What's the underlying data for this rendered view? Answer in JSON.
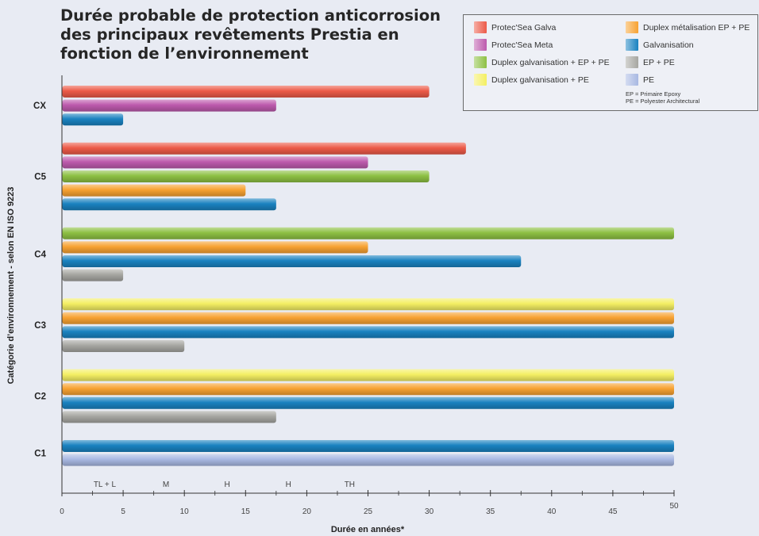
{
  "chart_data": {
    "type": "bar",
    "orientation": "horizontal",
    "title": "Durée probable de protection anticorrosion des principaux revêtements Prestia en fonction de l’environnement",
    "xlabel": "Durée en années*",
    "ylabel": "Catégorie d’environnement - selon EN ISO 9223",
    "xlim": [
      0,
      50
    ],
    "x_ticks": [
      0,
      5,
      10,
      15,
      20,
      25,
      30,
      35,
      40,
      45,
      50
    ],
    "durability_labels": [
      {
        "label": "TL + L",
        "x": 3.5
      },
      {
        "label": "M",
        "x": 8.5
      },
      {
        "label": "H",
        "x": 13.5
      },
      {
        "label": "H",
        "x": 18.5
      },
      {
        "label": "TH",
        "x": 23.5
      }
    ],
    "legend": {
      "position": "top-right",
      "notes": [
        "EP = Primaire Epoxy",
        "PE = Polyester Architectural"
      ]
    },
    "series": [
      {
        "key": "psg",
        "name": "Protec'Sea Galva",
        "color": "#ec5a48"
      },
      {
        "key": "dmep",
        "name": "Duplex métalisation EP + PE",
        "color": "#f7a232"
      },
      {
        "key": "psm",
        "name": "Protec'Sea Meta",
        "color": "#bd5aad"
      },
      {
        "key": "galv",
        "name": "Galvanisation",
        "color": "#1a82c0"
      },
      {
        "key": "dgepe",
        "name": "Duplex galvanisation + EP + PE",
        "color": "#8dc043"
      },
      {
        "key": "eppe",
        "name": "EP + PE",
        "color": "#a6a6a1"
      },
      {
        "key": "dgpe",
        "name": "Duplex galvanisation + PE",
        "color": "#f4ef63"
      },
      {
        "key": "pe",
        "name": "PE",
        "color": "#a8b8e2"
      }
    ],
    "categories": [
      {
        "label": "CX",
        "bars": [
          {
            "series": "psg",
            "value": 30
          },
          {
            "series": "psm",
            "value": 17.5
          },
          {
            "series": "galv",
            "value": 5
          }
        ]
      },
      {
        "label": "C5",
        "bars": [
          {
            "series": "psg",
            "value": 33
          },
          {
            "series": "psm",
            "value": 25
          },
          {
            "series": "dgepe",
            "value": 30
          },
          {
            "series": "dmep",
            "value": 15
          },
          {
            "series": "galv",
            "value": 17.5
          }
        ]
      },
      {
        "label": "C4",
        "bars": [
          {
            "series": "dgepe",
            "value": 50
          },
          {
            "series": "dmep",
            "value": 25
          },
          {
            "series": "galv",
            "value": 37.5
          },
          {
            "series": "eppe",
            "value": 5
          }
        ]
      },
      {
        "label": "C3",
        "bars": [
          {
            "series": "dgpe",
            "value": 50
          },
          {
            "series": "dmep",
            "value": 50
          },
          {
            "series": "galv",
            "value": 50
          },
          {
            "series": "eppe",
            "value": 10
          }
        ]
      },
      {
        "label": "C2",
        "bars": [
          {
            "series": "dgpe",
            "value": 50
          },
          {
            "series": "dmep",
            "value": 50
          },
          {
            "series": "galv",
            "value": 50
          },
          {
            "series": "eppe",
            "value": 17.5
          }
        ]
      },
      {
        "label": "C1",
        "bars": [
          {
            "series": "galv",
            "value": 50
          },
          {
            "series": "pe",
            "value": 50
          }
        ]
      }
    ]
  }
}
